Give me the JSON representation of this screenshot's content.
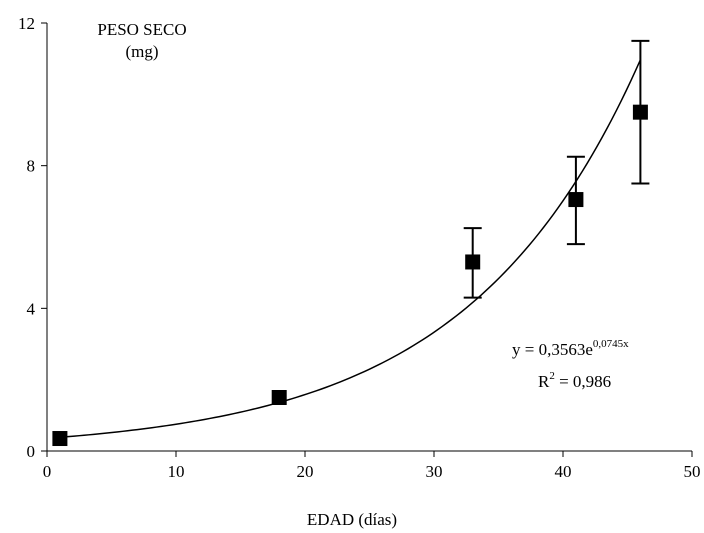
{
  "chart_data": {
    "type": "scatter",
    "title": "",
    "ylabel_line1": "PESO SECO",
    "ylabel_line2": "(mg)",
    "xlabel": "EDAD (días)",
    "xlim": [
      0,
      50
    ],
    "ylim": [
      0,
      12
    ],
    "x_ticks": [
      0,
      10,
      20,
      30,
      40,
      50
    ],
    "y_ticks": [
      0,
      4,
      8,
      12
    ],
    "grid": false,
    "legend": "none",
    "marker_color": "#000000",
    "points": [
      {
        "x": 1,
        "y": 0.35,
        "err_low": 0.35,
        "err_high": 0.35
      },
      {
        "x": 18,
        "y": 1.5,
        "err_low": 1.35,
        "err_high": 1.65
      },
      {
        "x": 33,
        "y": 5.3,
        "err_low": 4.3,
        "err_high": 6.25
      },
      {
        "x": 41,
        "y": 7.05,
        "err_low": 5.8,
        "err_high": 8.25
      },
      {
        "x": 46,
        "y": 9.5,
        "err_low": 7.5,
        "err_high": 11.5
      }
    ],
    "trendline": {
      "type": "exponential",
      "a": 0.3563,
      "b": 0.0745,
      "x_range": [
        1,
        46
      ]
    },
    "equation": {
      "prefix": "y = 0,3563e",
      "exponent": "0,0745x",
      "r2_prefix": "R",
      "r2_power": "2",
      "r2_value": " = 0,986"
    }
  }
}
